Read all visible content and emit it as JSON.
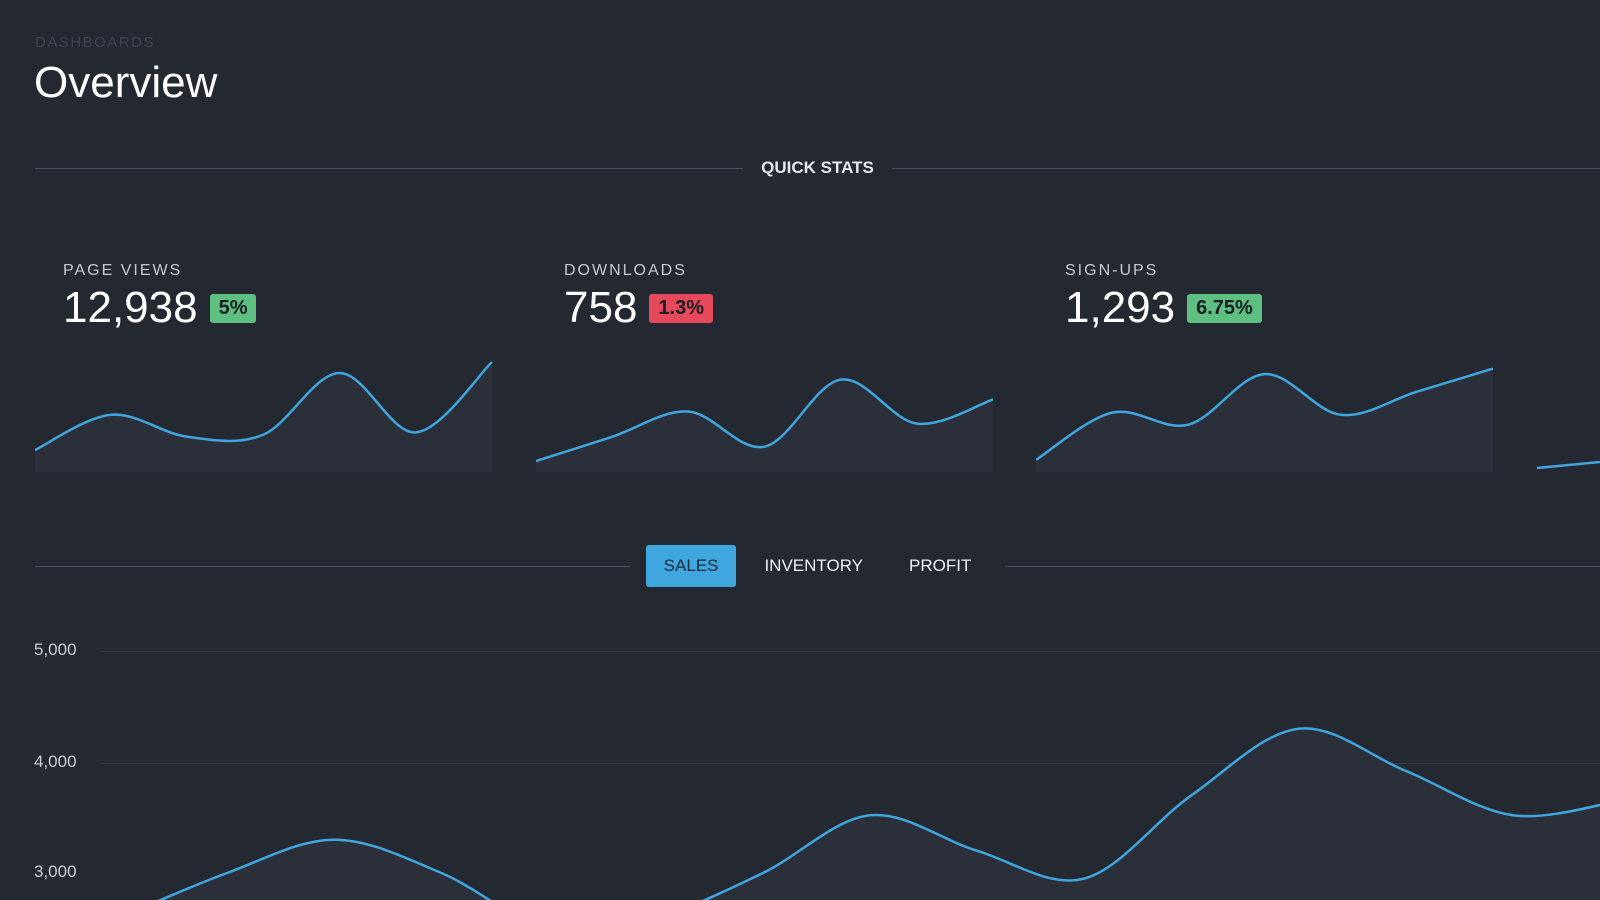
{
  "breadcrumb": "DASHBOARDS",
  "page_title": "Overview",
  "quick_stats_label": "QUICK STATS",
  "colors": {
    "background": "#242831",
    "accent": "#3fa6e0",
    "up": "#5dc080",
    "down": "#e5495b"
  },
  "stats": [
    {
      "label": "PAGE VIEWS",
      "value": "12,938",
      "change": "5%",
      "trend": "up",
      "spark": [
        2,
        5.2,
        3.2,
        3.4,
        9,
        3.6,
        10
      ]
    },
    {
      "label": "DOWNLOADS",
      "value": "758",
      "change": "1.3%",
      "trend": "down",
      "spark": [
        1,
        3.2,
        5.5,
        2.3,
        8.4,
        4.4,
        6.6
      ]
    },
    {
      "label": "SIGN-UPS",
      "value": "1,293",
      "change": "6.75%",
      "trend": "up",
      "spark": [
        1.1,
        5.4,
        4.3,
        8.9,
        5.2,
        7.3,
        9.4
      ]
    }
  ],
  "tabs": [
    {
      "label": "SALES",
      "active": true
    },
    {
      "label": "INVENTORY",
      "active": false
    },
    {
      "label": "PROFIT",
      "active": false
    }
  ],
  "chart_data": {
    "type": "area",
    "y_ticks": [
      "5,000",
      "4,000",
      "3,000"
    ],
    "ylim": [
      3000,
      5000
    ],
    "values": [
      2600,
      3000,
      3300,
      3000,
      2500,
      2600,
      3000,
      3520,
      3200,
      2950,
      3700,
      4300,
      3920,
      3520,
      3650
    ],
    "grid": true
  }
}
